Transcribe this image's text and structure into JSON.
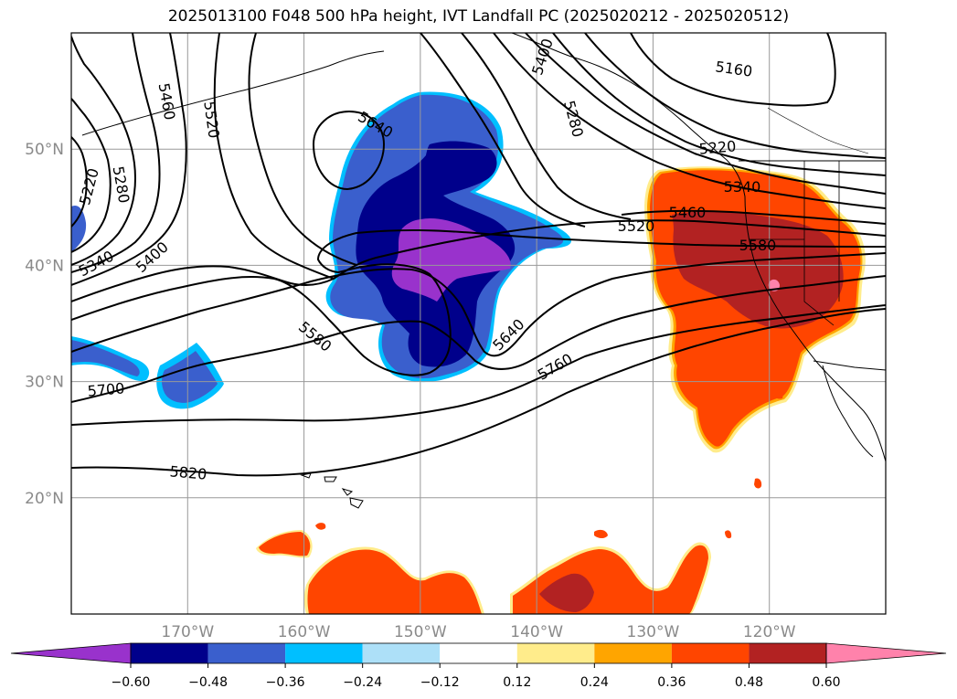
{
  "title": "2025013100 F048 500 hPa height, IVT Landfall PC (2025020212 - 2025020512)",
  "map": {
    "lat_labels": [
      {
        "lat": 50,
        "text": "50°N"
      },
      {
        "lat": 40,
        "text": "40°N"
      },
      {
        "lat": 30,
        "text": "30°N"
      },
      {
        "lat": 20,
        "text": "20°N"
      }
    ],
    "lon_labels": [
      {
        "lon": -170,
        "text": "170°W"
      },
      {
        "lon": -160,
        "text": "160°W"
      },
      {
        "lon": -150,
        "text": "150°W"
      },
      {
        "lon": -140,
        "text": "140°W"
      },
      {
        "lon": -130,
        "text": "130°W"
      },
      {
        "lon": -120,
        "text": "120°W"
      }
    ],
    "extent": {
      "lon_min": -180,
      "lon_max": -110,
      "lat_min": 10,
      "lat_max": 60
    },
    "gridlines": true
  },
  "contours": {
    "field": "500 hPa height",
    "levels": [
      5160,
      5220,
      5280,
      5340,
      5400,
      5460,
      5520,
      5580,
      5640,
      5700,
      5760,
      5820
    ],
    "labels": [
      {
        "text": "5160"
      },
      {
        "text": "5220"
      },
      {
        "text": "5220"
      },
      {
        "text": "5280"
      },
      {
        "text": "5280"
      },
      {
        "text": "5340"
      },
      {
        "text": "5340"
      },
      {
        "text": "5400"
      },
      {
        "text": "5400"
      },
      {
        "text": "5460"
      },
      {
        "text": "5460"
      },
      {
        "text": "5520"
      },
      {
        "text": "5520"
      },
      {
        "text": "5580"
      },
      {
        "text": "5580"
      },
      {
        "text": "5640"
      },
      {
        "text": "5640"
      },
      {
        "text": "5700"
      },
      {
        "text": "5760"
      },
      {
        "text": "5820"
      }
    ]
  },
  "colorbar": {
    "ticks": [
      "−0.60",
      "−0.48",
      "−0.36",
      "−0.24",
      "−0.12",
      "0.12",
      "0.24",
      "0.36",
      "0.48",
      "0.60"
    ],
    "colors": [
      "#9932CC",
      "#00008B",
      "#3A5FCD",
      "#00BFFF",
      "#ADE0F8",
      "#FFFFFF",
      "#FFEC8B",
      "#FFA500",
      "#FF4500",
      "#B22222",
      "#FF82AB"
    ]
  }
}
